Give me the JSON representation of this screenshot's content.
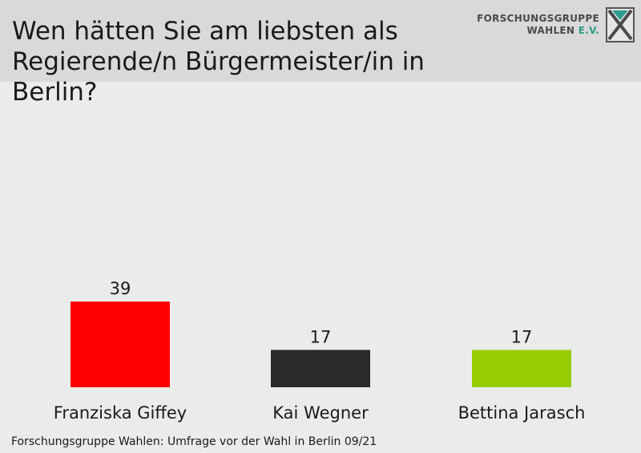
{
  "header": {
    "title_lines": [
      "Wen hätten Sie am liebsten als",
      "Regierende/n Bürgermeister/in in Berlin?"
    ],
    "logo": {
      "line1": "FORSCHUNGSGRUPPE",
      "line2_main": "WAHLEN ",
      "line2_accent": "E.V.",
      "icon": "fgw-logo-icon",
      "accent_color": "#2e9c8a"
    }
  },
  "chart_data": {
    "type": "bar",
    "title": "Wen hätten Sie am liebsten als Regierende/n Bürgermeister/in in Berlin?",
    "categories": [
      "Franziska Giffey",
      "Kai Wegner",
      "Bettina Jarasch"
    ],
    "values": [
      39,
      17,
      17
    ],
    "colors": [
      "#ff0000",
      "#2a2a2a",
      "#99cc00"
    ],
    "data_labels": [
      "39",
      "17",
      "17"
    ],
    "grid": false,
    "legend": "none"
  },
  "footer": {
    "source": "Forschungsgruppe Wahlen: Umfrage vor der Wahl in Berlin 09/21"
  }
}
